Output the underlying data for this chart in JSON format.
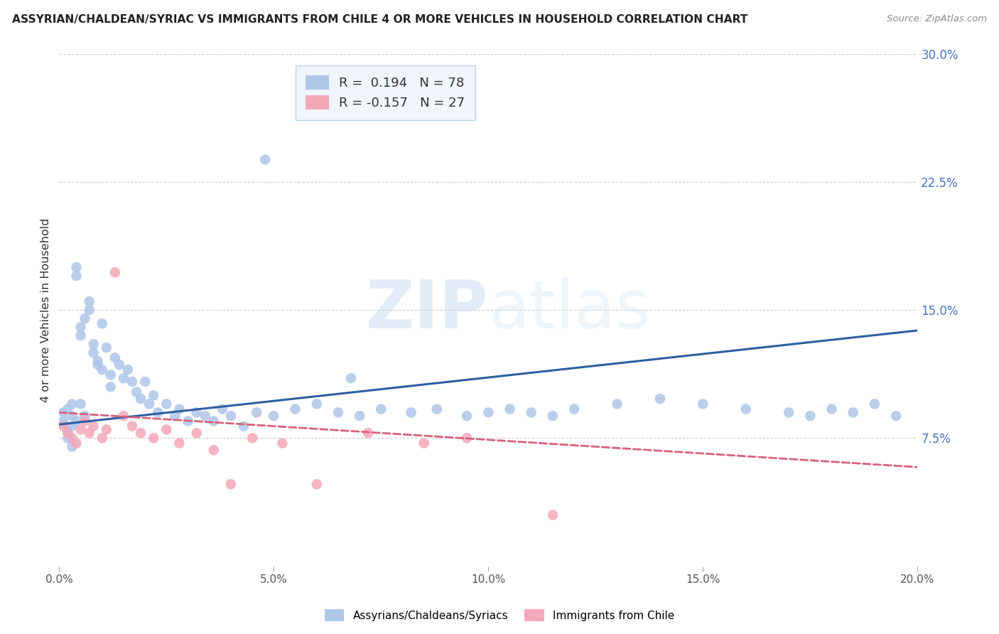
{
  "title": "ASSYRIAN/CHALDEAN/SYRIAC VS IMMIGRANTS FROM CHILE 4 OR MORE VEHICLES IN HOUSEHOLD CORRELATION CHART",
  "source": "Source: ZipAtlas.com",
  "ylabel": "4 or more Vehicles in Household",
  "xlabel_ticks": [
    "0.0%",
    "5.0%",
    "10.0%",
    "15.0%",
    "20.0%"
  ],
  "xlabel_vals": [
    0.0,
    0.05,
    0.1,
    0.15,
    0.2
  ],
  "ylabel_ticks": [
    "7.5%",
    "15.0%",
    "22.5%",
    "30.0%"
  ],
  "ylabel_vals": [
    0.075,
    0.15,
    0.225,
    0.3
  ],
  "xlim": [
    0.0,
    0.2
  ],
  "ylim": [
    0.0,
    0.3
  ],
  "blue_R": 0.194,
  "blue_N": 78,
  "pink_R": -0.157,
  "pink_N": 27,
  "blue_color": "#aec6e8",
  "pink_color": "#f4a7b9",
  "trendline_blue": "#2e5fa3",
  "trendline_pink": "#d9607a",
  "blue_scatter_x": [
    0.001,
    0.001,
    0.001,
    0.002,
    0.002,
    0.002,
    0.002,
    0.003,
    0.003,
    0.003,
    0.003,
    0.004,
    0.004,
    0.004,
    0.005,
    0.005,
    0.005,
    0.006,
    0.006,
    0.007,
    0.007,
    0.008,
    0.008,
    0.009,
    0.009,
    0.01,
    0.01,
    0.011,
    0.012,
    0.012,
    0.013,
    0.014,
    0.015,
    0.016,
    0.017,
    0.018,
    0.019,
    0.02,
    0.021,
    0.022,
    0.023,
    0.025,
    0.027,
    0.028,
    0.03,
    0.032,
    0.034,
    0.036,
    0.038,
    0.04,
    0.043,
    0.046,
    0.05,
    0.055,
    0.06,
    0.065,
    0.07,
    0.075,
    0.082,
    0.088,
    0.095,
    0.1,
    0.105,
    0.11,
    0.115,
    0.12,
    0.13,
    0.14,
    0.15,
    0.16,
    0.17,
    0.175,
    0.18,
    0.185,
    0.19,
    0.195,
    0.048,
    0.068
  ],
  "blue_scatter_y": [
    0.09,
    0.085,
    0.083,
    0.08,
    0.078,
    0.075,
    0.092,
    0.088,
    0.082,
    0.07,
    0.095,
    0.175,
    0.17,
    0.085,
    0.14,
    0.135,
    0.095,
    0.145,
    0.088,
    0.155,
    0.15,
    0.13,
    0.125,
    0.12,
    0.118,
    0.142,
    0.115,
    0.128,
    0.112,
    0.105,
    0.122,
    0.118,
    0.11,
    0.115,
    0.108,
    0.102,
    0.098,
    0.108,
    0.095,
    0.1,
    0.09,
    0.095,
    0.088,
    0.092,
    0.085,
    0.09,
    0.088,
    0.085,
    0.092,
    0.088,
    0.082,
    0.09,
    0.088,
    0.092,
    0.095,
    0.09,
    0.088,
    0.092,
    0.09,
    0.092,
    0.088,
    0.09,
    0.092,
    0.09,
    0.088,
    0.092,
    0.095,
    0.098,
    0.095,
    0.092,
    0.09,
    0.088,
    0.092,
    0.09,
    0.095,
    0.088,
    0.238,
    0.11
  ],
  "pink_scatter_x": [
    0.001,
    0.002,
    0.003,
    0.004,
    0.005,
    0.006,
    0.007,
    0.008,
    0.01,
    0.011,
    0.013,
    0.015,
    0.017,
    0.019,
    0.022,
    0.025,
    0.028,
    0.032,
    0.036,
    0.04,
    0.045,
    0.052,
    0.06,
    0.072,
    0.085,
    0.095,
    0.115
  ],
  "pink_scatter_y": [
    0.082,
    0.078,
    0.075,
    0.072,
    0.08,
    0.085,
    0.078,
    0.082,
    0.075,
    0.08,
    0.172,
    0.088,
    0.082,
    0.078,
    0.075,
    0.08,
    0.072,
    0.078,
    0.068,
    0.048,
    0.075,
    0.072,
    0.048,
    0.078,
    0.072,
    0.075,
    0.03
  ],
  "watermark_zip": "ZIP",
  "watermark_atlas": "atlas",
  "legend_box_color": "#edf2fb",
  "legend_border_color": "#aec6e8",
  "grid_color": "#cccccc",
  "tick_color": "#4472c4"
}
